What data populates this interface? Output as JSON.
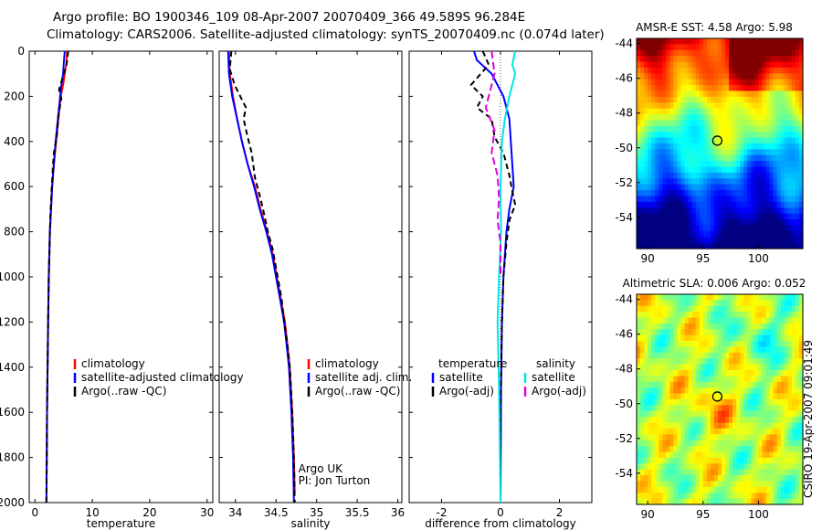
{
  "title_line1": "Argo profile: BO 1900346_109 08-Apr-2007 20070409_366 49.589S 96.284E",
  "title_line2": "Climatology: CARS2006. Satellite-adjusted climatology: synTS_20070409.nc (0.074d later)",
  "side_label": "CSIRO 19-Apr-2007 09:01:49",
  "colors": {
    "climatology": "#ff0000",
    "satellite": "#0000ff",
    "argo": "#000000",
    "salinity_satellite": "#00e5e5",
    "salinity_argo": "#e000e0"
  },
  "chart_data": [
    {
      "type": "line",
      "id": "temperature-profile",
      "xlabel": "temperature",
      "ylabel": "",
      "xlim": [
        -1,
        31
      ],
      "ylim": [
        2000,
        0
      ],
      "y_reversed": true,
      "xticks": [
        0,
        10,
        20,
        30
      ],
      "yticks": [
        0,
        200,
        400,
        600,
        800,
        1000,
        1200,
        1400,
        1600,
        1800,
        2000
      ],
      "grid": false,
      "legend_position": "lower-center",
      "series": [
        {
          "name": "climatology",
          "color": "#ff0000",
          "dash": "",
          "points": [
            [
              5.6,
              0
            ],
            [
              5.5,
              50
            ],
            [
              5.2,
              100
            ],
            [
              4.9,
              150
            ],
            [
              4.5,
              200
            ],
            [
              4.1,
              300
            ],
            [
              3.7,
              400
            ],
            [
              3.3,
              500
            ],
            [
              3.0,
              600
            ],
            [
              2.8,
              700
            ],
            [
              2.6,
              800
            ],
            [
              2.5,
              900
            ],
            [
              2.4,
              1000
            ],
            [
              2.3,
              1200
            ],
            [
              2.2,
              1400
            ],
            [
              2.1,
              1600
            ],
            [
              2.05,
              1800
            ],
            [
              2.0,
              1900
            ]
          ]
        },
        {
          "name": "satellite-adjusted climatology",
          "color": "#0000ff",
          "dash": "",
          "points": [
            [
              5.2,
              0
            ],
            [
              5.0,
              60
            ],
            [
              4.9,
              100
            ],
            [
              4.6,
              150
            ],
            [
              4.4,
              200
            ],
            [
              4.0,
              300
            ],
            [
              3.6,
              400
            ],
            [
              3.3,
              500
            ],
            [
              3.0,
              600
            ],
            [
              2.8,
              700
            ],
            [
              2.6,
              800
            ],
            [
              2.5,
              900
            ],
            [
              2.4,
              1000
            ],
            [
              2.3,
              1200
            ],
            [
              2.2,
              1400
            ],
            [
              2.1,
              1600
            ],
            [
              2.05,
              1800
            ],
            [
              2.0,
              2000
            ]
          ]
        },
        {
          "name": "Argo(..raw -QC)",
          "color": "#000000",
          "dash": "6,4",
          "points": [
            [
              5.8,
              0
            ],
            [
              5.5,
              60
            ],
            [
              4.8,
              120
            ],
            [
              4.2,
              170
            ],
            [
              4.6,
              210
            ],
            [
              4.1,
              280
            ],
            [
              3.8,
              380
            ],
            [
              3.3,
              450
            ],
            [
              3.1,
              520
            ],
            [
              2.9,
              620
            ],
            [
              2.7,
              720
            ],
            [
              2.6,
              820
            ],
            [
              2.5,
              920
            ],
            [
              2.4,
              1000
            ],
            [
              2.3,
              1200
            ],
            [
              2.2,
              1400
            ],
            [
              2.1,
              1600
            ],
            [
              2.05,
              1800
            ],
            [
              2.0,
              2000
            ]
          ]
        }
      ]
    },
    {
      "type": "line",
      "id": "salinity-profile",
      "xlabel": "salinity",
      "ylabel": "",
      "xlim": [
        33.8,
        36.05
      ],
      "ylim": [
        2000,
        0
      ],
      "y_reversed": true,
      "xticks": [
        34,
        34.5,
        35,
        35.5,
        36
      ],
      "grid": false,
      "legend_position": "lower-center",
      "annotations": [
        "Argo UK",
        "PI: Jon Turton"
      ],
      "series": [
        {
          "name": "climatology",
          "color": "#ff0000",
          "dash": "",
          "points": [
            [
              33.92,
              0
            ],
            [
              33.93,
              100
            ],
            [
              33.97,
              200
            ],
            [
              34.02,
              300
            ],
            [
              34.08,
              400
            ],
            [
              34.15,
              500
            ],
            [
              34.24,
              600
            ],
            [
              34.31,
              700
            ],
            [
              34.39,
              800
            ],
            [
              34.46,
              900
            ],
            [
              34.51,
              1000
            ],
            [
              34.56,
              1100
            ],
            [
              34.61,
              1200
            ],
            [
              34.64,
              1300
            ],
            [
              34.67,
              1400
            ],
            [
              34.7,
              1600
            ],
            [
              34.72,
              1800
            ],
            [
              34.73,
              1950
            ]
          ]
        },
        {
          "name": "satellite adj. clim.",
          "color": "#0000ff",
          "dash": "",
          "points": [
            [
              33.91,
              0
            ],
            [
              33.92,
              100
            ],
            [
              33.96,
              200
            ],
            [
              34.02,
              300
            ],
            [
              34.08,
              400
            ],
            [
              34.15,
              500
            ],
            [
              34.23,
              600
            ],
            [
              34.3,
              700
            ],
            [
              34.38,
              800
            ],
            [
              34.45,
              900
            ],
            [
              34.5,
              1000
            ],
            [
              34.55,
              1100
            ],
            [
              34.6,
              1200
            ],
            [
              34.63,
              1300
            ],
            [
              34.66,
              1400
            ],
            [
              34.69,
              1600
            ],
            [
              34.71,
              1800
            ],
            [
              34.72,
              2000
            ]
          ]
        },
        {
          "name": "Argo(..raw -QC)",
          "color": "#000000",
          "dash": "6,4",
          "points": [
            [
              33.95,
              0
            ],
            [
              33.93,
              80
            ],
            [
              33.99,
              150
            ],
            [
              34.06,
              200
            ],
            [
              34.13,
              250
            ],
            [
              34.1,
              300
            ],
            [
              34.15,
              380
            ],
            [
              34.2,
              450
            ],
            [
              34.24,
              560
            ],
            [
              34.3,
              640
            ],
            [
              34.34,
              700
            ],
            [
              34.4,
              800
            ],
            [
              34.46,
              880
            ],
            [
              34.52,
              1000
            ],
            [
              34.57,
              1100
            ],
            [
              34.6,
              1200
            ],
            [
              34.64,
              1300
            ],
            [
              34.67,
              1400
            ],
            [
              34.7,
              1600
            ],
            [
              34.72,
              1800
            ],
            [
              34.73,
              2000
            ]
          ]
        }
      ]
    },
    {
      "type": "line",
      "id": "difference-profile",
      "xlabel": "difference from climatology",
      "ylabel": "",
      "xlim": [
        -3.1,
        3.1
      ],
      "ylim": [
        2000,
        0
      ],
      "y_reversed": true,
      "xticks": [
        -2,
        0,
        2
      ],
      "grid": false,
      "legend_position": "lower-center",
      "legend_headers": [
        "temperature",
        "salinity"
      ],
      "series": [
        {
          "name": "satellite",
          "group": "temperature",
          "color": "#0000ff",
          "dash": "",
          "points": [
            [
              -0.9,
              0
            ],
            [
              -0.8,
              40
            ],
            [
              -0.3,
              100
            ],
            [
              0.1,
              200
            ],
            [
              0.3,
              300
            ],
            [
              0.35,
              400
            ],
            [
              0.4,
              500
            ],
            [
              0.45,
              600
            ],
            [
              0.3,
              700
            ],
            [
              0.2,
              800
            ],
            [
              0.1,
              1000
            ],
            [
              0.05,
              1200
            ],
            [
              0.02,
              1500
            ],
            [
              0.0,
              2000
            ]
          ]
        },
        {
          "name": "Argo(-adj)",
          "group": "temperature",
          "color": "#000000",
          "dash": "6,4",
          "points": [
            [
              -0.6,
              0
            ],
            [
              -0.4,
              60
            ],
            [
              -1.0,
              150
            ],
            [
              -0.6,
              200
            ],
            [
              -0.8,
              250
            ],
            [
              -0.3,
              300
            ],
            [
              -0.2,
              380
            ],
            [
              0.1,
              450
            ],
            [
              0.3,
              550
            ],
            [
              0.4,
              620
            ],
            [
              0.5,
              680
            ],
            [
              0.3,
              750
            ],
            [
              0.2,
              850
            ],
            [
              0.1,
              1000
            ],
            [
              0.05,
              1200
            ],
            [
              0.0,
              1600
            ],
            [
              0.0,
              2000
            ]
          ]
        },
        {
          "name": "satellite",
          "group": "salinity",
          "color": "#00e5e5",
          "dash": "",
          "points": [
            [
              0.5,
              0
            ],
            [
              0.4,
              60
            ],
            [
              0.5,
              100
            ],
            [
              0.3,
              200
            ],
            [
              0.15,
              300
            ],
            [
              0.05,
              400
            ],
            [
              0.0,
              600
            ],
            [
              0.02,
              800
            ],
            [
              -0.05,
              1000
            ],
            [
              -0.1,
              1200
            ],
            [
              -0.05,
              1500
            ],
            [
              0.0,
              2000
            ]
          ]
        },
        {
          "name": "Argo(-adj)",
          "group": "salinity",
          "color": "#e000e0",
          "dash": "8,4",
          "points": [
            [
              -0.3,
              0
            ],
            [
              -0.2,
              100
            ],
            [
              -0.5,
              250
            ],
            [
              -0.2,
              350
            ],
            [
              -0.3,
              450
            ],
            [
              -0.1,
              550
            ],
            [
              -0.05,
              650
            ],
            [
              -0.1,
              750
            ],
            [
              0.0,
              850
            ],
            [
              0.0,
              1000
            ]
          ]
        }
      ]
    },
    {
      "type": "heatmap",
      "id": "sst-map",
      "title": "AMSR-E SST: 4.58 Argo: 5.98",
      "xlim": [
        89,
        104
      ],
      "ylim": [
        -55.8,
        -43.7
      ],
      "xticks": [
        90,
        95,
        100
      ],
      "yticks": [
        -44,
        -46,
        -48,
        -50,
        -52,
        -54
      ],
      "marker": [
        96.284,
        -49.589
      ],
      "colormap": "jet"
    },
    {
      "type": "heatmap",
      "id": "sla-map",
      "title": "Altimetric SLA: 0.006 Argo: 0.052",
      "xlim": [
        89,
        104
      ],
      "ylim": [
        -55.8,
        -43.7
      ],
      "xticks": [
        90,
        95,
        100
      ],
      "yticks": [
        -44,
        -46,
        -48,
        -50,
        -52,
        -54
      ],
      "marker": [
        96.284,
        -49.589
      ],
      "colormap": "jet"
    }
  ]
}
